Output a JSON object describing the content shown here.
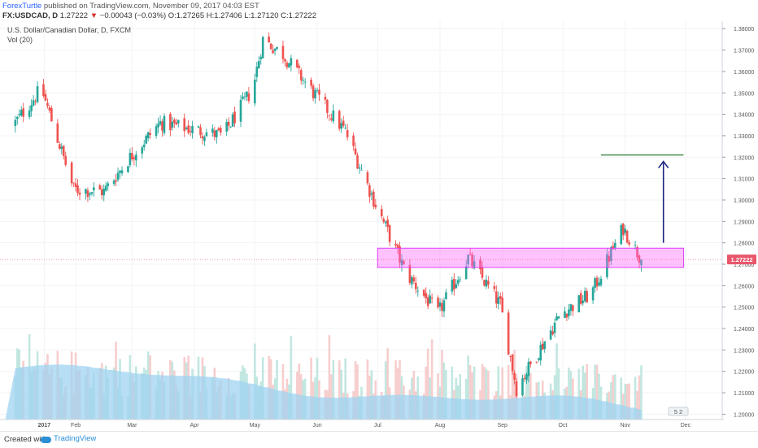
{
  "header": {
    "author": "ForexTurtle",
    "published_text": "published on TradingView.com, November 09, 2017 04:03 EST",
    "symbol": "FX:USDCAD, D",
    "last_price": "1.27222",
    "change": "−0.00043 (−0.03%)",
    "ohlc": "O:1.27265 H:1.27406 L:1.27120 C:1.27222"
  },
  "legend": {
    "title": "U.S. Dollar/Canadian Dollar, D, FXCM",
    "volume_label": "Vol (20)"
  },
  "footer": {
    "created_with": "Created with",
    "brand": "TradingView"
  },
  "colors": {
    "up": "#26a69a",
    "down": "#ef5350",
    "volume_area": "#9fd3f0",
    "support_box": "#ff66ff",
    "target_line": "#2e7d32",
    "arrow": "#1a237e",
    "price_tag": "#e8566b"
  },
  "chart_data": {
    "type": "candlestick",
    "title": "U.S. Dollar/Canadian Dollar, D, FXCM",
    "y_axis_ticks": [
      "1.38000",
      "1.37000",
      "1.36000",
      "1.35000",
      "1.34000",
      "1.33000",
      "1.32000",
      "1.31000",
      "1.30000",
      "1.29000",
      "1.28000",
      "1.27000",
      "1.26000",
      "1.25000",
      "1.24000",
      "1.23000",
      "1.22000",
      "1.21000",
      "1.20000"
    ],
    "ylim": [
      1.1975,
      1.3835
    ],
    "x_axis_ticks": [
      "2017",
      "Feb",
      "Mar",
      "Apr",
      "May",
      "Jun",
      "Jul",
      "Aug",
      "Sep",
      "Oct",
      "Nov",
      "Dec"
    ],
    "last_price_label": "1.27222",
    "price_series": [
      {
        "date": "2017-01-01",
        "close": 1.335
      },
      {
        "date": "2017-01-15",
        "close": 1.352
      },
      {
        "date": "2017-01-31",
        "close": 1.305
      },
      {
        "date": "2017-02-15",
        "close": 1.304
      },
      {
        "date": "2017-02-28",
        "close": 1.32
      },
      {
        "date": "2017-03-15",
        "close": 1.336
      },
      {
        "date": "2017-03-31",
        "close": 1.333
      },
      {
        "date": "2017-04-15",
        "close": 1.33
      },
      {
        "date": "2017-04-30",
        "close": 1.352
      },
      {
        "date": "2017-05-05",
        "close": 1.375
      },
      {
        "date": "2017-05-15",
        "close": 1.368
      },
      {
        "date": "2017-05-31",
        "close": 1.349
      },
      {
        "date": "2017-06-15",
        "close": 1.332
      },
      {
        "date": "2017-06-30",
        "close": 1.298
      },
      {
        "date": "2017-07-15",
        "close": 1.266
      },
      {
        "date": "2017-07-31",
        "close": 1.247
      },
      {
        "date": "2017-08-15",
        "close": 1.273
      },
      {
        "date": "2017-08-31",
        "close": 1.251
      },
      {
        "date": "2017-09-08",
        "close": 1.212
      },
      {
        "date": "2017-09-30",
        "close": 1.247
      },
      {
        "date": "2017-10-15",
        "close": 1.256
      },
      {
        "date": "2017-10-31",
        "close": 1.287
      },
      {
        "date": "2017-11-09",
        "close": 1.27222
      }
    ],
    "support_zone": {
      "from": "2017-07-01",
      "to": "2017-11-30",
      "low": 1.2685,
      "high": 1.2775
    },
    "target_level": {
      "price": 1.321,
      "from": "2017-10-20",
      "to": "2017-11-30"
    },
    "projection_arrow": {
      "date": "2017-11-20",
      "from": 1.28,
      "to": 1.318
    },
    "volume": {
      "name": "Vol (20)",
      "ma_level_start": 0.62,
      "ma_level_end": 0.28
    }
  }
}
